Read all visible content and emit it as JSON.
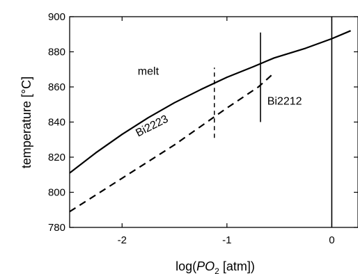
{
  "chart_data": {
    "type": "line",
    "xlabel": {
      "prefix": "log(",
      "italic": "PO",
      "subscript": "2",
      "suffix": " [atm])"
    },
    "ylabel": "temperature  [°C]",
    "xlim": [
      -2.5,
      0.25
    ],
    "ylim": [
      780,
      900
    ],
    "xticks": [
      -2,
      -1,
      0
    ],
    "xtick_labels": [
      "-2",
      "-1",
      "0"
    ],
    "yticks": [
      780,
      800,
      820,
      840,
      860,
      880,
      900
    ],
    "ytick_labels": [
      "780",
      "800",
      "820",
      "840",
      "860",
      "880",
      "900"
    ],
    "grid": false,
    "series": [
      {
        "style": "solid",
        "points": [
          [
            -2.5,
            811
          ],
          [
            -2.25,
            822.5
          ],
          [
            -2.0,
            833
          ],
          [
            -1.75,
            842.5
          ],
          [
            -1.5,
            851
          ],
          [
            -1.25,
            858.5
          ],
          [
            -1.0,
            865.5
          ],
          [
            -0.75,
            871.5
          ],
          [
            -0.55,
            876.5
          ],
          [
            -0.25,
            882
          ],
          [
            0.0,
            887.5
          ],
          [
            0.18,
            892
          ]
        ]
      },
      {
        "style": "dashed",
        "points": [
          [
            -2.5,
            789
          ],
          [
            -2.0,
            808
          ],
          [
            -1.5,
            827
          ],
          [
            -1.0,
            848
          ],
          [
            -0.7,
            860
          ],
          [
            -0.55,
            868
          ]
        ]
      }
    ],
    "vertical_lines": [
      {
        "x": -1.12,
        "y_range": [
          831,
          871
        ],
        "style": "dashed"
      },
      {
        "x": -0.68,
        "y_range": [
          840,
          891
        ],
        "style": "solid"
      },
      {
        "x": 0.0,
        "y_range": [
          780,
          900
        ],
        "style": "solid"
      }
    ],
    "annotations": [
      {
        "text": "melt",
        "x": -1.75,
        "y": 867,
        "rotation": 0
      },
      {
        "text": "Bi2223",
        "x": -1.7,
        "y": 836,
        "rotation": -27
      },
      {
        "text": "Bi2212",
        "x": -0.45,
        "y": 850,
        "rotation": 0
      }
    ]
  }
}
